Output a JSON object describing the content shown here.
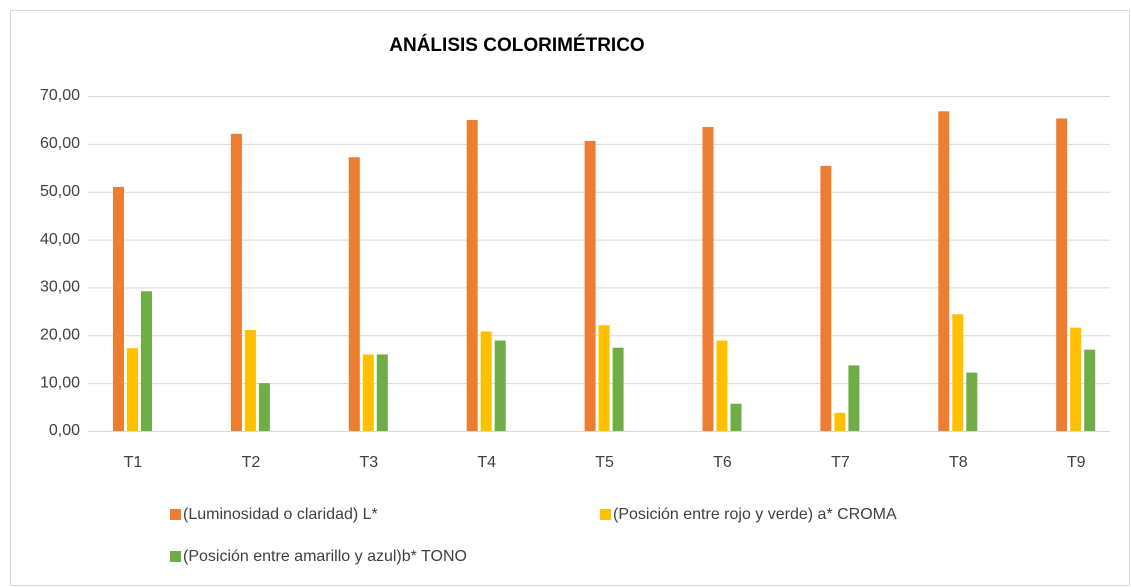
{
  "chart_data": {
    "type": "bar",
    "title": "ANÁLISIS COLORIMÉTRICO",
    "categories": [
      "T1",
      "T2",
      "T3",
      "T4",
      "T5",
      "T6",
      "T7",
      "T8",
      "T9"
    ],
    "series": [
      {
        "name": "(Luminosidad o claridad) L*",
        "color": "#ed7d31",
        "values": [
          51.0,
          62.1,
          57.2,
          65.0,
          60.6,
          63.5,
          55.4,
          66.8,
          65.3
        ]
      },
      {
        "name": "(Posición entre rojo y verde) a* CROMA",
        "color": "#ffc000",
        "values": [
          17.3,
          21.1,
          16.0,
          20.8,
          22.1,
          18.9,
          3.8,
          24.4,
          21.6
        ]
      },
      {
        "name": "(Posición entre amarillo y azul)b* TONO",
        "color": "#70ad47",
        "values": [
          29.2,
          10.0,
          16.0,
          18.9,
          17.4,
          5.7,
          13.7,
          12.2,
          17.0
        ]
      }
    ],
    "ylim": [
      0,
      70
    ],
    "yticks": [
      {
        "value": 0,
        "label": "0,00"
      },
      {
        "value": 10,
        "label": "10,00"
      },
      {
        "value": 20,
        "label": "20,00"
      },
      {
        "value": 30,
        "label": "30,00"
      },
      {
        "value": 40,
        "label": "40,00"
      },
      {
        "value": 50,
        "label": "50,00"
      },
      {
        "value": 60,
        "label": "60,00"
      },
      {
        "value": 70,
        "label": "70,00"
      }
    ],
    "grid": true,
    "legend": "bottom"
  }
}
